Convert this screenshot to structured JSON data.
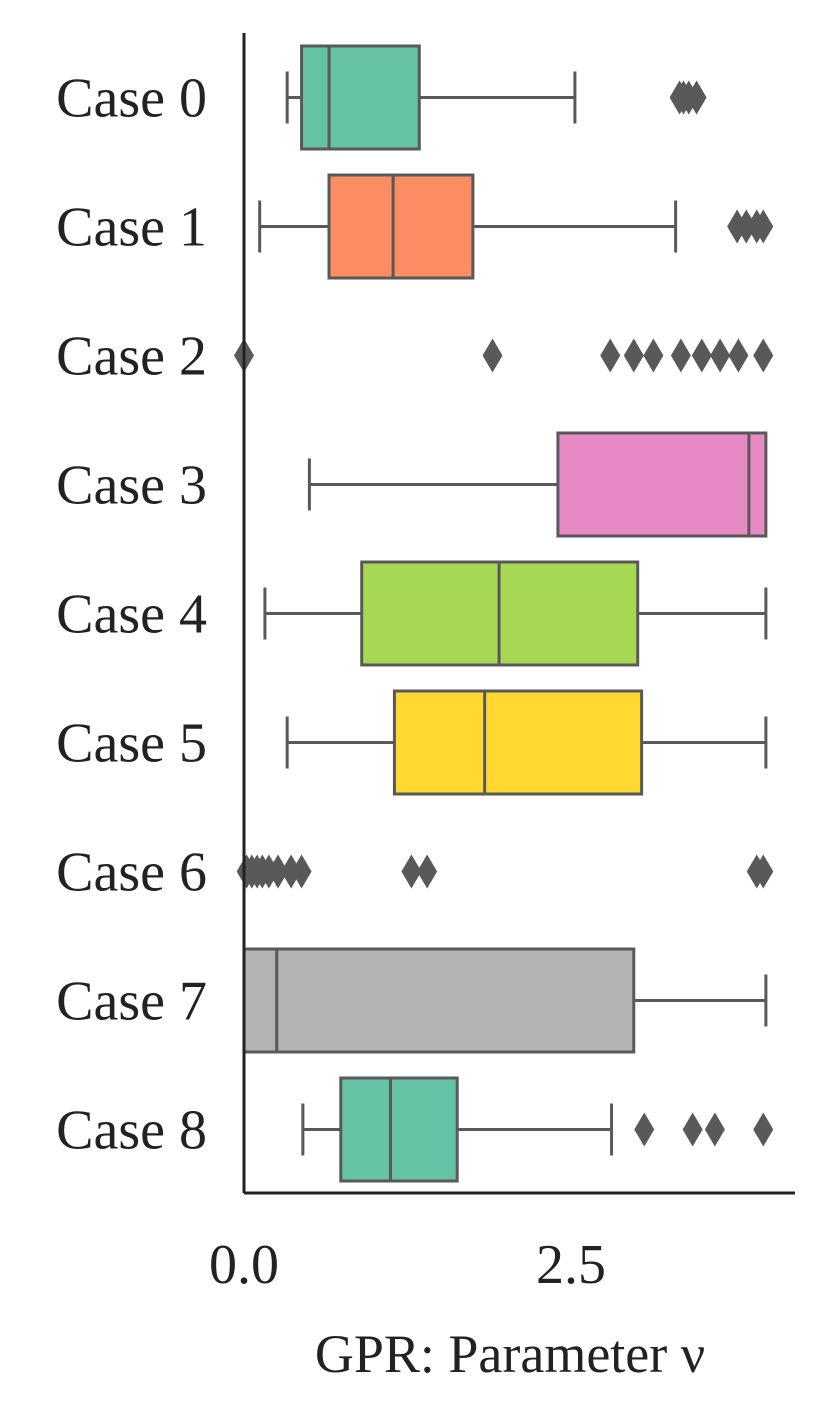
{
  "chart_data": {
    "type": "boxplot",
    "orientation": "horizontal",
    "title": "",
    "xlabel": "GPR: Parameter ν",
    "ylabel": "",
    "xlim": [
      0.0,
      4.2
    ],
    "xticks": [
      0.0,
      2.5
    ],
    "xtick_labels": [
      "0.0",
      "2.5"
    ],
    "grid": false,
    "legend": "none",
    "categories": [
      "Case 0",
      "Case 1",
      "Case 2",
      "Case 3",
      "Case 4",
      "Case 5",
      "Case 6",
      "Case 7",
      "Case 8"
    ],
    "boxes": [
      {
        "label": "Case 0",
        "whisker_low": 0.33,
        "q1": 0.44,
        "median": 0.65,
        "q3": 1.34,
        "whisker_high": 2.53,
        "outliers": [
          3.33,
          3.36,
          3.4,
          3.46
        ],
        "color": "#66c2a5"
      },
      {
        "label": "Case 1",
        "whisker_low": 0.12,
        "q1": 0.65,
        "median": 1.14,
        "q3": 1.75,
        "whisker_high": 3.3,
        "outliers": [
          3.77,
          3.84,
          3.92,
          3.97
        ],
        "color": "#fc8d62"
      },
      {
        "label": "Case 2",
        "whisker_low": 0.0,
        "q1": 0.0,
        "median": 0.0,
        "q3": 0.0,
        "whisker_high": 0.0,
        "outliers": [
          0.0,
          1.9,
          2.8,
          2.98,
          3.13,
          3.34,
          3.5,
          3.64,
          3.78,
          3.97
        ],
        "color": "#8da0cb"
      },
      {
        "label": "Case 3",
        "whisker_low": 0.5,
        "q1": 2.4,
        "median": 3.86,
        "q3": 3.99,
        "whisker_high": 3.99,
        "outliers": [],
        "color": "#e78ac3"
      },
      {
        "label": "Case 4",
        "whisker_low": 0.16,
        "q1": 0.9,
        "median": 1.95,
        "q3": 3.01,
        "whisker_high": 3.99,
        "outliers": [],
        "color": "#a6d854"
      },
      {
        "label": "Case 5",
        "whisker_low": 0.33,
        "q1": 1.15,
        "median": 1.84,
        "q3": 3.04,
        "whisker_high": 3.99,
        "outliers": [],
        "color": "#ffd92f"
      },
      {
        "label": "Case 6",
        "whisker_low": 0.0,
        "q1": 0.0,
        "median": 0.0,
        "q3": 0.0,
        "whisker_high": 0.0,
        "outliers": [
          0.02,
          0.06,
          0.1,
          0.14,
          0.19,
          0.26,
          0.36,
          0.44,
          1.28,
          1.4,
          3.92,
          3.97
        ],
        "color": "#e5c494"
      },
      {
        "label": "Case 7",
        "whisker_low": 0.0,
        "q1": 0.0,
        "median": 0.25,
        "q3": 2.98,
        "whisker_high": 3.99,
        "outliers": [],
        "color": "#b3b3b3"
      },
      {
        "label": "Case 8",
        "whisker_low": 0.45,
        "q1": 0.74,
        "median": 1.12,
        "q3": 1.63,
        "whisker_high": 2.81,
        "outliers": [
          3.06,
          3.43,
          3.6,
          3.97
        ],
        "color": "#66c2a5"
      }
    ]
  }
}
